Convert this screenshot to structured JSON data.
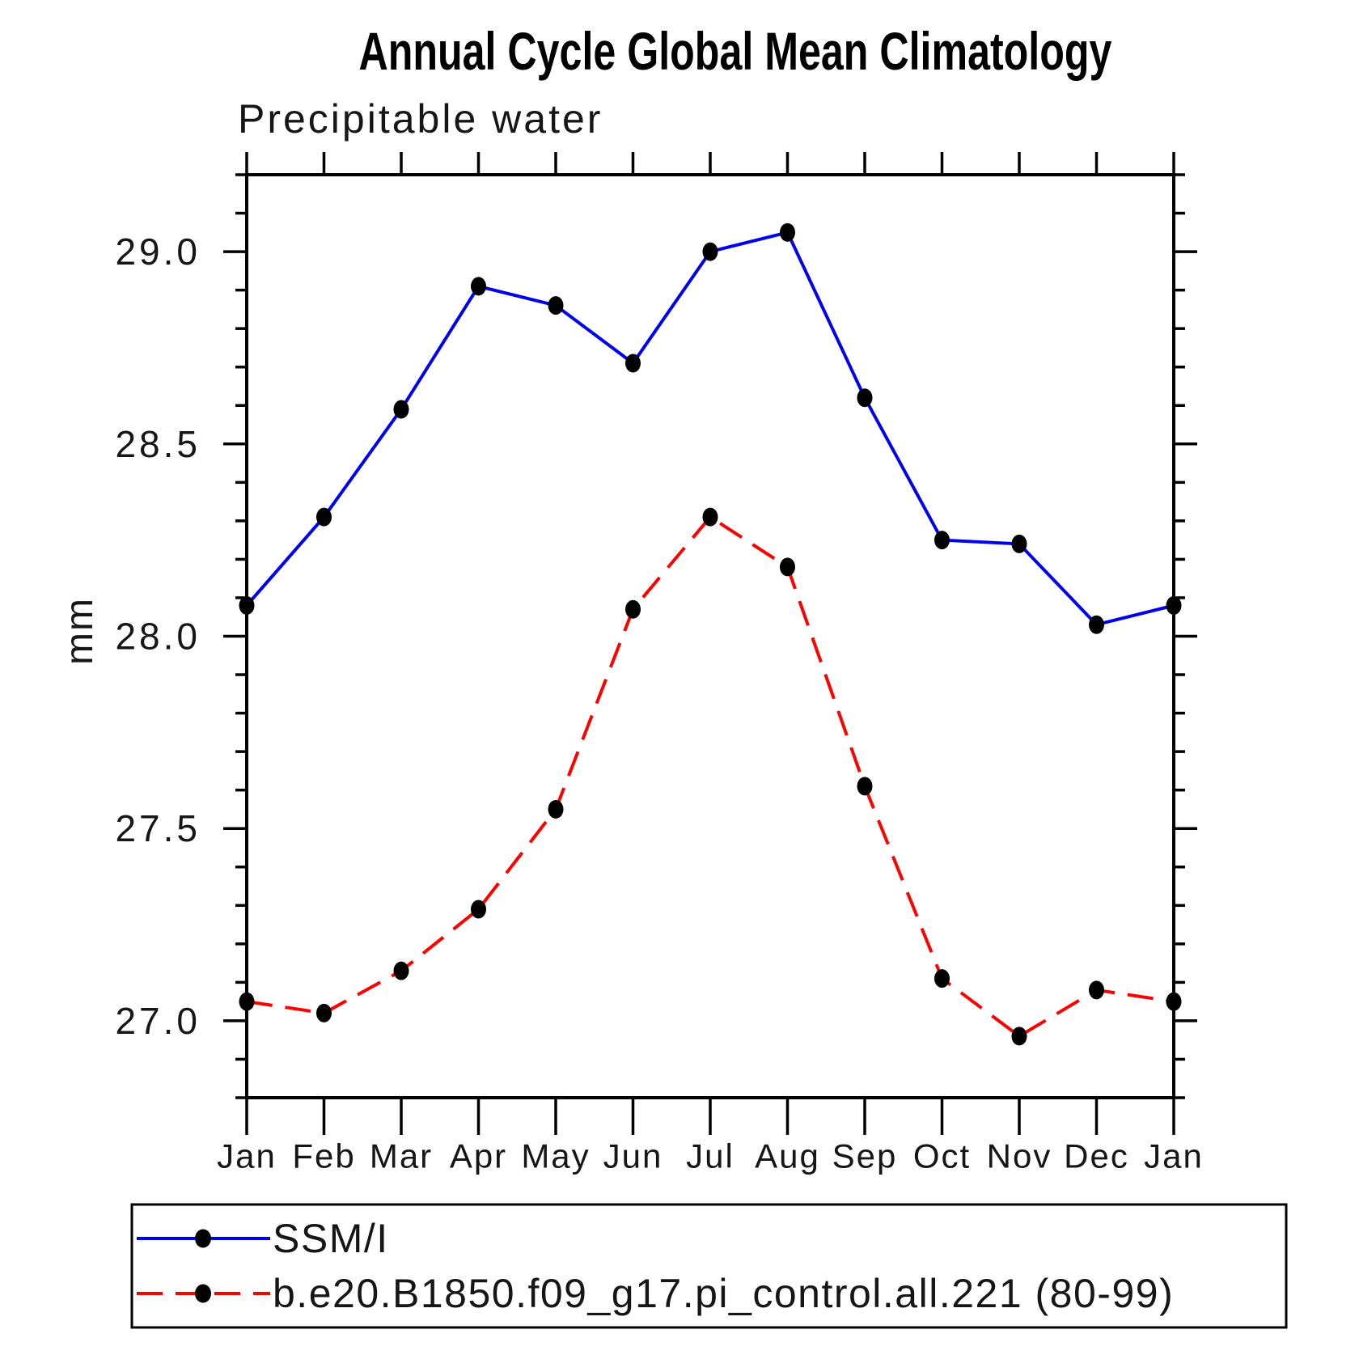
{
  "page": {
    "background_color": "#ffffff",
    "axis_color": "#000000",
    "text_color": "#161616"
  },
  "chart_data": {
    "type": "line",
    "title": "Annual Cycle Global Mean Climatology",
    "subtitle": "Precipitable water",
    "ylabel": "mm",
    "xlabel": "",
    "categories": [
      "Jan",
      "Feb",
      "Mar",
      "Apr",
      "May",
      "Jun",
      "Jul",
      "Aug",
      "Sep",
      "Oct",
      "Nov",
      "Dec",
      "Jan"
    ],
    "ylim": [
      26.8,
      29.2
    ],
    "y_major_ticks": [
      27.0,
      27.5,
      28.0,
      28.5,
      29.0
    ],
    "y_minor_step": 0.1,
    "grid": false,
    "legend_position": "bottom-left-box",
    "series": [
      {
        "name": "SSM/I",
        "color": "#0000ee",
        "line_style": "solid",
        "marker": "filled-circle",
        "marker_color": "#000000",
        "values": [
          28.08,
          28.31,
          28.59,
          28.91,
          28.86,
          28.71,
          29.0,
          29.05,
          28.62,
          28.25,
          28.24,
          28.03,
          28.08
        ]
      },
      {
        "name": "b.e20.B1850.f09_g17.pi_control.all.221 (80-99)",
        "color": "#ff0000",
        "line_style": "dashed",
        "marker": "filled-circle",
        "marker_color": "#000000",
        "values": [
          27.05,
          27.02,
          27.13,
          27.29,
          27.55,
          28.07,
          28.31,
          28.18,
          27.61,
          27.11,
          26.96,
          27.08,
          27.05
        ]
      }
    ]
  }
}
